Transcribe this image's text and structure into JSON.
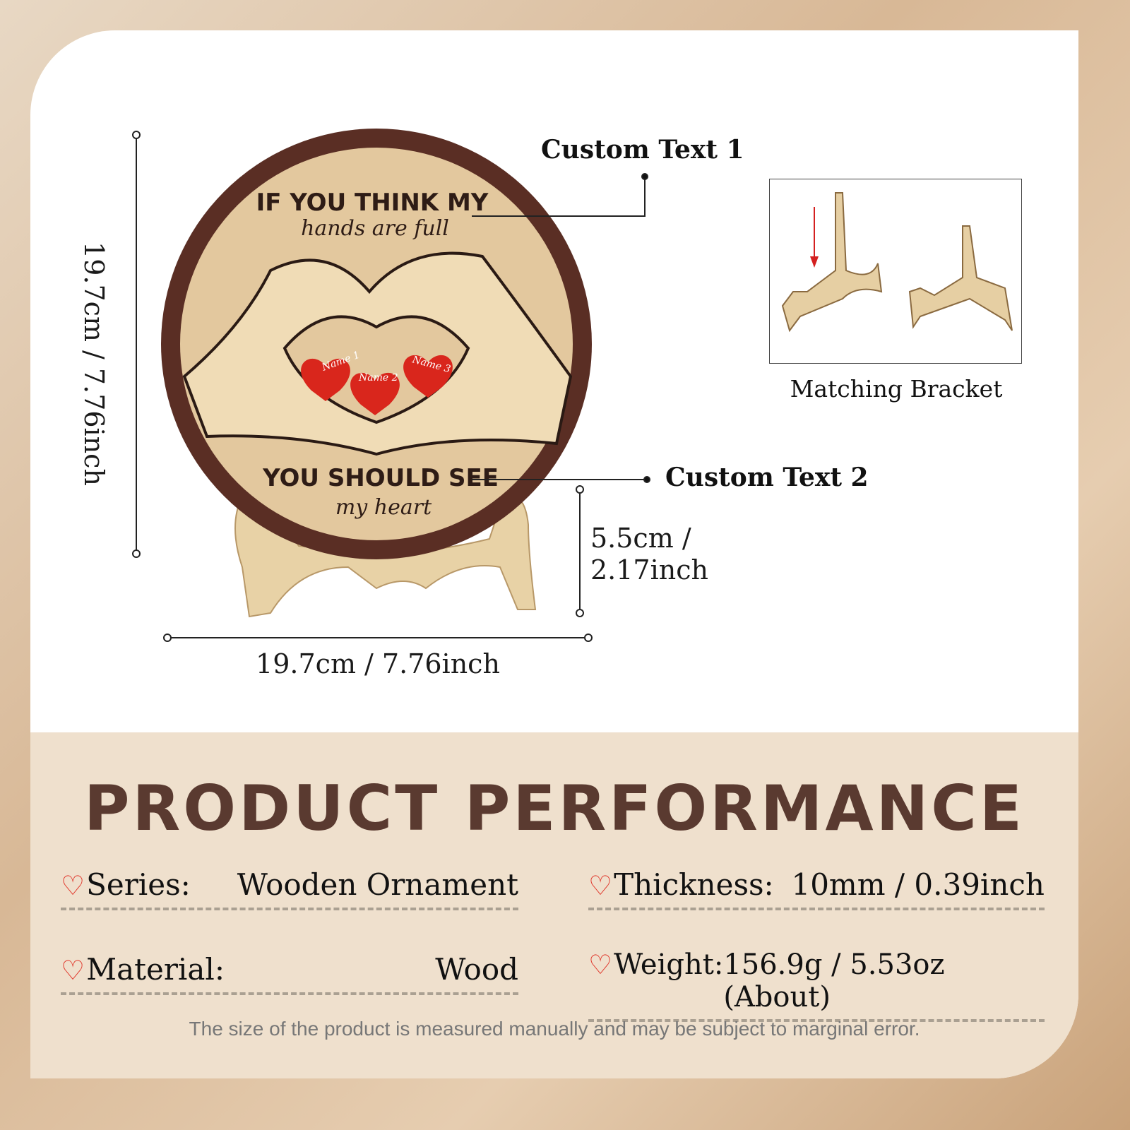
{
  "product": {
    "plaque_text_top": "IF YOU THINK MY",
    "plaque_script_top": "hands are full",
    "plaque_text_bottom": "YOU SHOULD SEE",
    "plaque_script_bottom": "my heart",
    "hearts": [
      "Name 1",
      "Name 2",
      "Name 3"
    ]
  },
  "dimensions": {
    "height": "19.7cm / 7.76inch",
    "width": "19.7cm / 7.76inch",
    "stand_height_line1": "5.5cm /",
    "stand_height_line2": "2.17inch"
  },
  "callouts": {
    "custom_text_1": "Custom Text 1",
    "custom_text_2": "Custom Text 2",
    "bracket_label": "Matching Bracket"
  },
  "performance": {
    "title": "PRODUCT PERFORMANCE",
    "rows": [
      {
        "label": "Series:",
        "value": "Wooden Ornament"
      },
      {
        "label": "Thickness:",
        "value": "10mm / 0.39inch"
      },
      {
        "label": "Material:",
        "value": "Wood"
      },
      {
        "label": "Weight:",
        "value": "156.9g / 5.53oz (About)"
      }
    ],
    "icon": "heart-icon",
    "note": "The size of the product is measured manually and may be subject to marginal error."
  },
  "colors": {
    "frame": "#5a2e24",
    "wood": "#e3c89e",
    "heart": "#d9261c",
    "title": "#5a3a30"
  }
}
